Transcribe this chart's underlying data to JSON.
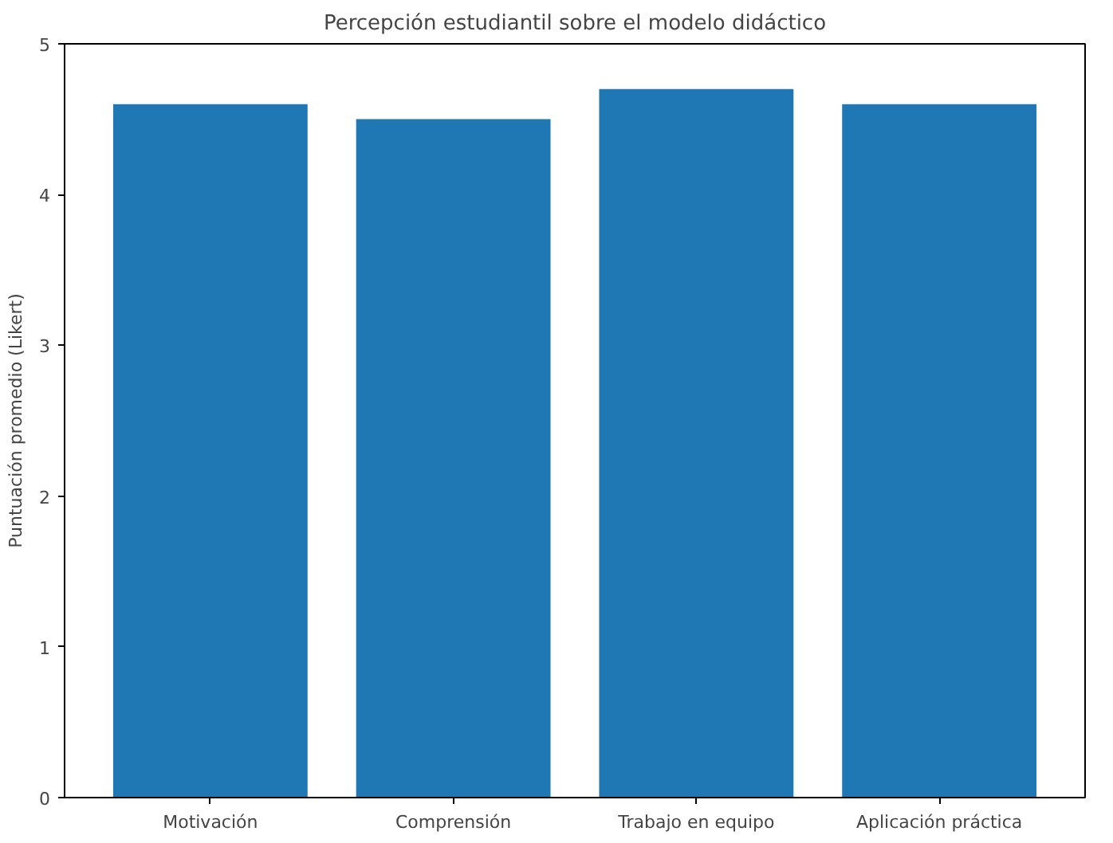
{
  "chart_data": {
    "type": "bar",
    "title": "Percepción estudiantil sobre el modelo didáctico",
    "ylabel": "Puntuación promedio (Likert)",
    "categories": [
      "Motivación",
      "Comprensión",
      "Trabajo en equipo",
      "Aplicación práctica"
    ],
    "values": [
      4.6,
      4.5,
      4.7,
      4.6
    ],
    "color": "#1f77b4",
    "ylim": [
      0,
      5
    ],
    "yticks": [
      0,
      1,
      2,
      3,
      4,
      5
    ],
    "grid": false
  }
}
